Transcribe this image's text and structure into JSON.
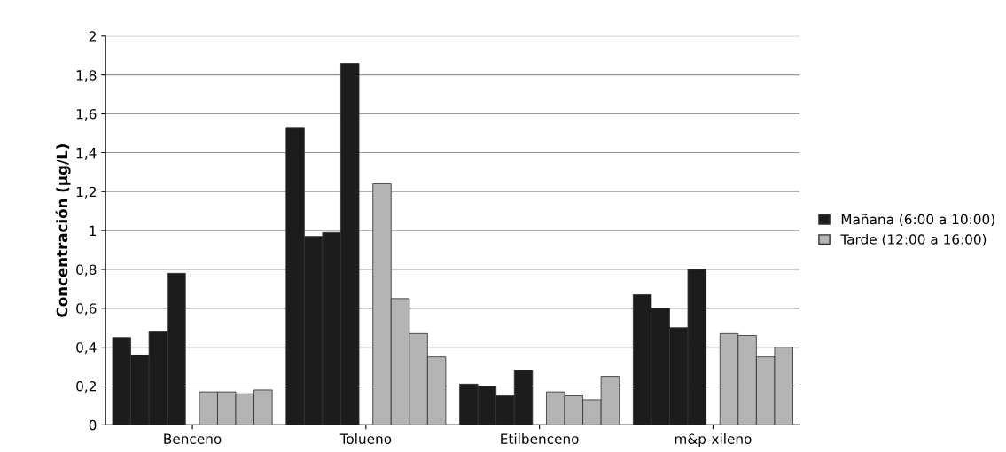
{
  "chart_data": {
    "type": "bar",
    "ylabel": "Concentración (µg/L)",
    "categories": [
      "Benceno",
      "Tolueno",
      "Etilbenceno",
      "m&p-xileno"
    ],
    "series": [
      {
        "name": "Mañana (6:00 a 10:00)",
        "color": "#1c1c1c",
        "values": [
          0.45,
          1.53,
          0.21,
          0.67
        ]
      },
      {
        "color": "#1c1c1c",
        "values": [
          0.36,
          0.97,
          0.2,
          0.6
        ]
      },
      {
        "color": "#1c1c1c",
        "values": [
          0.48,
          0.99,
          0.15,
          0.5
        ]
      },
      {
        "color": "#1c1c1c",
        "values": [
          0.78,
          1.86,
          0.28,
          0.8
        ]
      },
      {
        "name": "Tarde (12:00 a 16:00)",
        "color": "#b4b4b4",
        "values": [
          0.17,
          1.24,
          0.17,
          0.47
        ]
      },
      {
        "color": "#b4b4b4",
        "values": [
          0.17,
          0.65,
          0.15,
          0.46
        ]
      },
      {
        "color": "#b4b4b4",
        "values": [
          0.16,
          0.47,
          0.13,
          0.35
        ]
      },
      {
        "color": "#b4b4b4",
        "values": [
          0.18,
          0.35,
          0.25,
          0.4
        ]
      }
    ],
    "ylim": [
      0,
      2
    ],
    "yticks": [
      0,
      {
        "value": 0.2,
        "label": "0,2"
      },
      {
        "value": 0.4,
        "label": "0,4"
      },
      {
        "value": 0.6,
        "label": "0,6"
      },
      {
        "value": 0.8,
        "label": "0,8"
      },
      1,
      {
        "value": 1.2,
        "label": "1,2"
      },
      {
        "value": 1.4,
        "label": "1,4"
      },
      {
        "value": 1.6,
        "label": "1,6"
      },
      {
        "value": 1.8,
        "label": "1,8"
      },
      2
    ],
    "grid": "y",
    "legend": "right"
  }
}
